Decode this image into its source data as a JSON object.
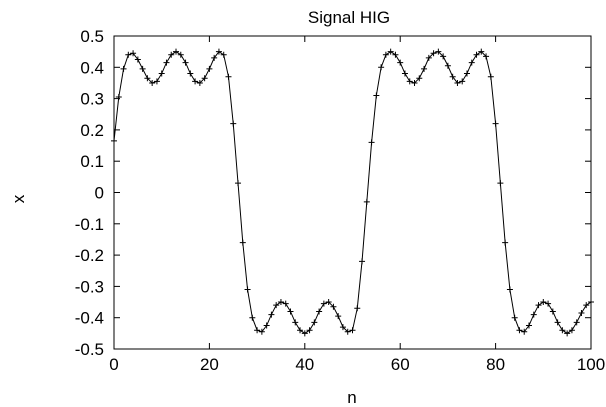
{
  "chart_data": {
    "type": "line",
    "title": "Signal HIG",
    "xlabel": "n",
    "ylabel": "x",
    "xlim": [
      0,
      100
    ],
    "ylim": [
      -0.5,
      0.5
    ],
    "xticks": [
      0,
      20,
      40,
      60,
      80,
      100
    ],
    "yticks": [
      0.5,
      0.4,
      0.3,
      0.2,
      0.1,
      0,
      -0.1,
      -0.2,
      -0.3,
      -0.4,
      -0.5
    ],
    "xtick_labels": [
      "0",
      "20",
      "40",
      "60",
      "80",
      "100"
    ],
    "ytick_labels": [
      "0.5",
      "0.4",
      "0.3",
      "0.2",
      "0.1",
      "0",
      "-0.1",
      "-0.2",
      "-0.3",
      "-0.4",
      "-0.5"
    ],
    "grid": false,
    "legend": false,
    "marker": "+",
    "series": [
      {
        "x": [
          0,
          1,
          2,
          3,
          4,
          5,
          6,
          7,
          8,
          9,
          10,
          11,
          12,
          13,
          14,
          15,
          16,
          17,
          18,
          19,
          20,
          21,
          22,
          23,
          24,
          25,
          26,
          27,
          28,
          29,
          30,
          31,
          32,
          33,
          34,
          35,
          36,
          37,
          38,
          39,
          40,
          41,
          42,
          43,
          44,
          45,
          46,
          47,
          48,
          49,
          50,
          51,
          52,
          53,
          54,
          55,
          56,
          57,
          58,
          59,
          60,
          61,
          62,
          63,
          64,
          65,
          66,
          67,
          68,
          69,
          70,
          71,
          72,
          73,
          74,
          75,
          76,
          77,
          78,
          79,
          80,
          81,
          82,
          83,
          84,
          85,
          86,
          87,
          88,
          89,
          90,
          91,
          92,
          93,
          94,
          95,
          96,
          97,
          98,
          99,
          100
        ],
        "y": [
          0.165,
          0.305,
          0.395,
          0.44,
          0.445,
          0.425,
          0.395,
          0.365,
          0.35,
          0.355,
          0.38,
          0.415,
          0.44,
          0.45,
          0.44,
          0.415,
          0.38,
          0.355,
          0.35,
          0.365,
          0.395,
          0.43,
          0.45,
          0.44,
          0.37,
          0.22,
          0.03,
          -0.16,
          -0.31,
          -0.4,
          -0.44,
          -0.445,
          -0.425,
          -0.39,
          -0.36,
          -0.35,
          -0.355,
          -0.38,
          -0.415,
          -0.44,
          -0.45,
          -0.44,
          -0.415,
          -0.38,
          -0.355,
          -0.35,
          -0.365,
          -0.395,
          -0.43,
          -0.445,
          -0.44,
          -0.37,
          -0.22,
          -0.03,
          0.16,
          0.31,
          0.4,
          0.44,
          0.45,
          0.44,
          0.415,
          0.38,
          0.355,
          0.35,
          0.365,
          0.395,
          0.43,
          0.445,
          0.45,
          0.435,
          0.405,
          0.37,
          0.35,
          0.355,
          0.38,
          0.415,
          0.44,
          0.45,
          0.435,
          0.37,
          0.22,
          0.03,
          -0.16,
          -0.31,
          -0.4,
          -0.44,
          -0.445,
          -0.425,
          -0.39,
          -0.36,
          -0.35,
          -0.355,
          -0.38,
          -0.415,
          -0.44,
          -0.45,
          -0.44,
          -0.415,
          -0.385,
          -0.36,
          -0.35
        ]
      }
    ]
  }
}
